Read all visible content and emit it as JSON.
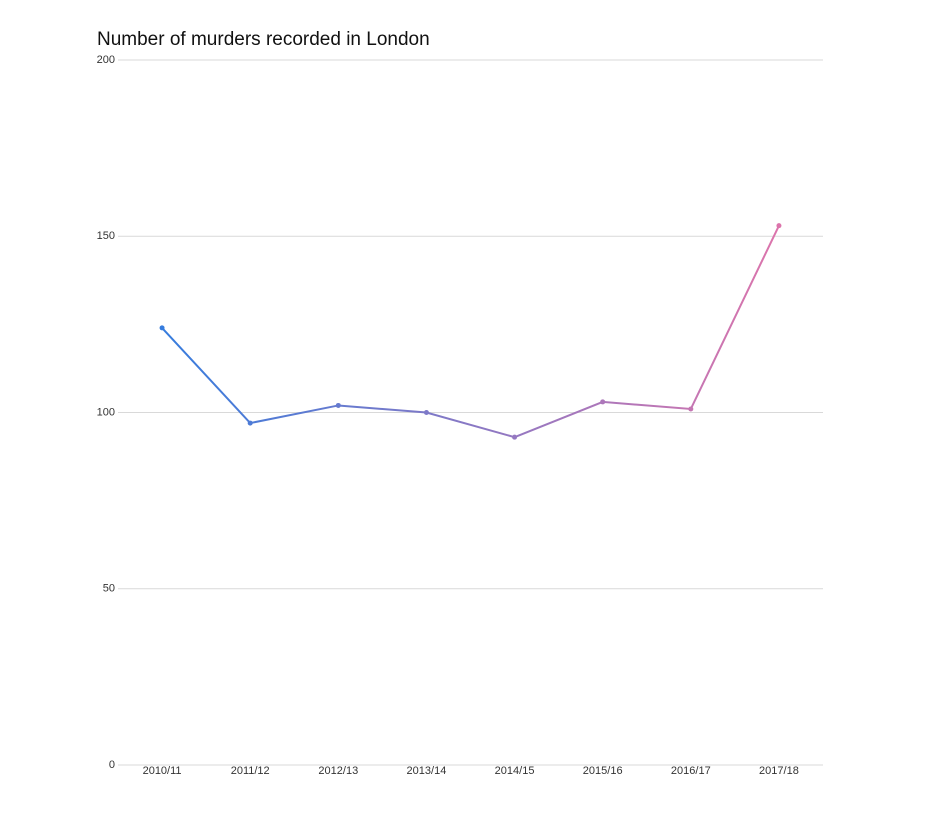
{
  "chart_data": {
    "type": "line",
    "title": "Number of murders recorded in London",
    "categories": [
      "2010/11",
      "2011/12",
      "2012/13",
      "2013/14",
      "2014/15",
      "2015/16",
      "2016/17",
      "2017/18"
    ],
    "series": [
      {
        "name": "Murders",
        "color": [
          "#2a7de1",
          "#e874a8"
        ],
        "values": [
          124,
          97,
          102,
          100,
          93,
          103,
          101,
          153
        ]
      }
    ],
    "ylim": [
      0,
      200
    ],
    "yticks": [
      0,
      50,
      100,
      150,
      200
    ],
    "grid": true,
    "legend": false
  }
}
